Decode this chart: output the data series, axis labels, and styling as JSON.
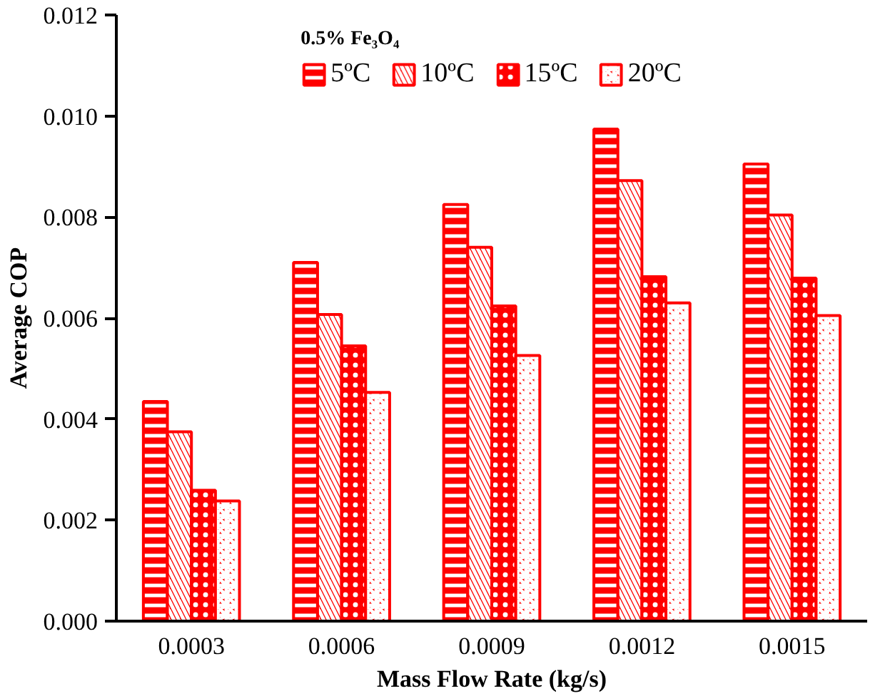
{
  "chart_data": {
    "type": "bar",
    "categories": [
      "0.0003",
      "0.0006",
      "0.0009",
      "0.0012",
      "0.0015"
    ],
    "xlabel": "Mass Flow Rate (kg/s)",
    "ylabel": "Average COP",
    "legend_title": "0.5% Fe₃O₄",
    "series": [
      {
        "name": "5ºC",
        "color": "#ff0000",
        "values": [
          0.00435,
          0.0071,
          0.00825,
          0.00974,
          0.00905
        ]
      },
      {
        "name": "10ºC",
        "color": "#ff0000",
        "values": [
          0.00375,
          0.00607,
          0.0074,
          0.00872,
          0.00804
        ]
      },
      {
        "name": "15ºC",
        "color": "#ff0000",
        "values": [
          0.00259,
          0.00545,
          0.00624,
          0.00682,
          0.00679
        ]
      },
      {
        "name": "20ºC",
        "color": "#ff0000",
        "values": [
          0.00238,
          0.00453,
          0.00526,
          0.0063,
          0.00605
        ]
      }
    ],
    "ylim": [
      0,
      0.012
    ],
    "yticks": [
      {
        "value": 0,
        "label": "0.000"
      },
      {
        "value": 0.002,
        "label": "0.002"
      },
      {
        "value": 0.004,
        "label": "0.004"
      },
      {
        "value": 0.006,
        "label": "0.006"
      },
      {
        "value": 0.008,
        "label": "0.008"
      },
      {
        "value": 0.01,
        "label": "0.010"
      },
      {
        "value": 0.012,
        "label": "0.012"
      }
    ],
    "grid": false,
    "legend": "top"
  }
}
